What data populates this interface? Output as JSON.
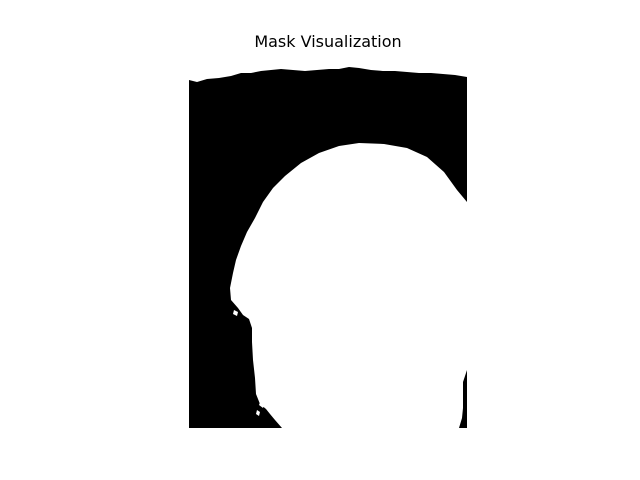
{
  "figure": {
    "title": "Mask Visualization"
  },
  "mask": {
    "foreground_color": "#ffffff",
    "background_color": "#000000"
  }
}
